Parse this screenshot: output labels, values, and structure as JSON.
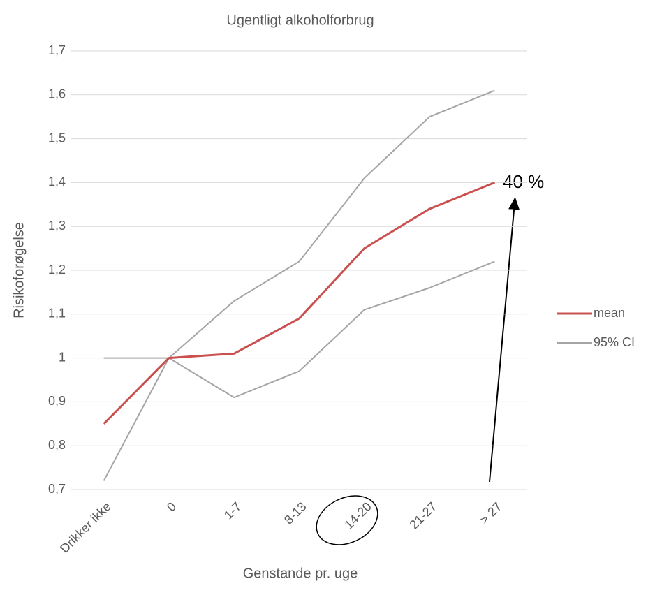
{
  "chart_data": {
    "type": "line",
    "title": "Ugentligt alkoholforbrug",
    "x_label": "Genstande pr. uge",
    "y_label": "Risikoforøgelse",
    "categories": [
      "Drikker ikke",
      "0",
      "1-7",
      "8-13",
      "14-20",
      "21-27",
      "> 27"
    ],
    "series": [
      {
        "name": "mean",
        "color": "#c9504f",
        "values": [
          0.85,
          1,
          1.01,
          1.09,
          1.25,
          1.34,
          1.4
        ]
      },
      {
        "name": "95% CI",
        "color": "#a5a5a5",
        "upper": [
          1,
          1,
          1.13,
          1.22,
          1.41,
          1.55,
          1.61
        ],
        "lower": [
          0.72,
          1,
          0.91,
          0.97,
          1.11,
          1.16,
          1.22
        ]
      }
    ],
    "ylim": [
      0.7,
      1.7
    ],
    "yticks": [
      {
        "value": 0.7,
        "label": "0,7"
      },
      {
        "value": 0.8,
        "label": "0,8"
      },
      {
        "value": 0.9,
        "label": "0,9"
      },
      1,
      {
        "value": 1.1,
        "label": "1,1"
      },
      {
        "value": 1.2,
        "label": "1,2"
      },
      {
        "value": 1.3,
        "label": "1,3"
      },
      {
        "value": 1.4,
        "label": "1,4"
      },
      {
        "value": 1.5,
        "label": "1,5"
      },
      {
        "value": 1.6,
        "label": "1,6"
      },
      {
        "value": 1.7,
        "label": "1,7"
      }
    ],
    "grid": true,
    "legend": "right",
    "annotations": [
      "40 %"
    ]
  }
}
